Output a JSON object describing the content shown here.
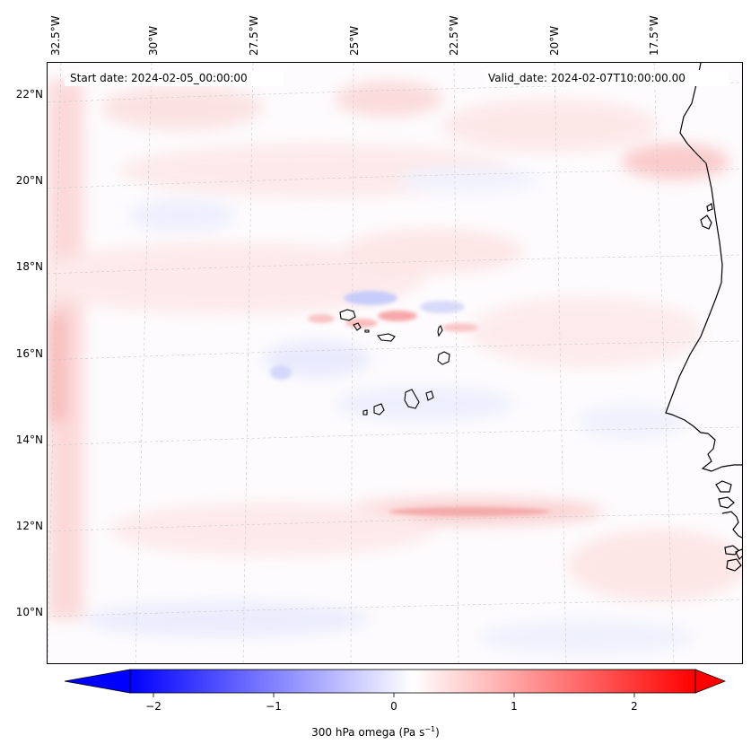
{
  "header": {
    "start_date": "Start date: 2024-02-05_00:00:00",
    "valid_date": "Valid_date: 2024-02-07T10:00:00.00"
  },
  "axes": {
    "lon_labels": [
      "32.5°W",
      "30°W",
      "27.5°W",
      "25°W",
      "22.5°W",
      "20°W",
      "17.5°W"
    ],
    "lat_labels": [
      "22°N",
      "20°N",
      "18°N",
      "16°N",
      "14°N",
      "12°N",
      "10°N"
    ]
  },
  "colorbar": {
    "ticks": [
      "−2",
      "−1",
      "0",
      "1",
      "2"
    ],
    "label": "300 hPa omega (Pa s",
    "label_sup": "−1",
    "label_end": ")",
    "colors": {
      "negative": "#0000ff",
      "zero": "#ffffff",
      "positive": "#ff0000"
    }
  }
}
